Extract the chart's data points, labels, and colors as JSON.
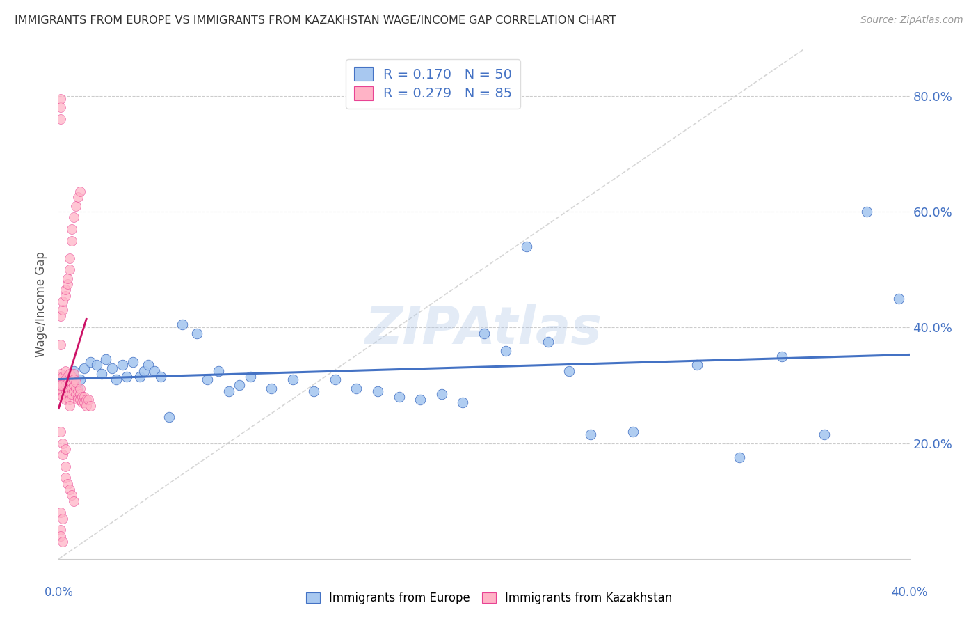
{
  "title": "IMMIGRANTS FROM EUROPE VS IMMIGRANTS FROM KAZAKHSTAN WAGE/INCOME GAP CORRELATION CHART",
  "source": "Source: ZipAtlas.com",
  "ylabel": "Wage/Income Gap",
  "legend_label1": "Immigrants from Europe",
  "legend_label2": "Immigrants from Kazakhstan",
  "R1": 0.17,
  "N1": 50,
  "R2": 0.279,
  "N2": 85,
  "color_europe": "#a8c8f0",
  "color_kazakhstan": "#ffb3c6",
  "color_europe_dark": "#4472c4",
  "color_kazakhstan_dark": "#e84393",
  "xlim": [
    0.0,
    0.4
  ],
  "ylim": [
    0.0,
    0.88
  ],
  "yticks": [
    0.2,
    0.4,
    0.6,
    0.8
  ],
  "europe_x": [
    0.005,
    0.007,
    0.009,
    0.01,
    0.012,
    0.015,
    0.018,
    0.02,
    0.022,
    0.025,
    0.027,
    0.03,
    0.032,
    0.035,
    0.038,
    0.04,
    0.042,
    0.045,
    0.048,
    0.052,
    0.058,
    0.065,
    0.07,
    0.075,
    0.08,
    0.085,
    0.09,
    0.1,
    0.11,
    0.12,
    0.13,
    0.14,
    0.15,
    0.16,
    0.17,
    0.18,
    0.19,
    0.2,
    0.21,
    0.22,
    0.23,
    0.24,
    0.25,
    0.27,
    0.3,
    0.32,
    0.34,
    0.36,
    0.38,
    0.395
  ],
  "europe_y": [
    0.315,
    0.325,
    0.295,
    0.31,
    0.33,
    0.34,
    0.335,
    0.32,
    0.345,
    0.33,
    0.31,
    0.335,
    0.315,
    0.34,
    0.315,
    0.325,
    0.335,
    0.325,
    0.315,
    0.245,
    0.405,
    0.39,
    0.31,
    0.325,
    0.29,
    0.3,
    0.315,
    0.295,
    0.31,
    0.29,
    0.31,
    0.295,
    0.29,
    0.28,
    0.275,
    0.285,
    0.27,
    0.39,
    0.36,
    0.54,
    0.375,
    0.325,
    0.215,
    0.22,
    0.335,
    0.175,
    0.35,
    0.215,
    0.6,
    0.45
  ],
  "kazakhstan_x": [
    0.001,
    0.001,
    0.001,
    0.001,
    0.001,
    0.002,
    0.002,
    0.002,
    0.002,
    0.002,
    0.003,
    0.003,
    0.003,
    0.003,
    0.003,
    0.003,
    0.004,
    0.004,
    0.004,
    0.004,
    0.005,
    0.005,
    0.005,
    0.005,
    0.005,
    0.006,
    0.006,
    0.006,
    0.006,
    0.007,
    0.007,
    0.007,
    0.007,
    0.008,
    0.008,
    0.008,
    0.009,
    0.009,
    0.009,
    0.01,
    0.01,
    0.01,
    0.011,
    0.011,
    0.012,
    0.012,
    0.013,
    0.013,
    0.014,
    0.015,
    0.001,
    0.001,
    0.002,
    0.002,
    0.003,
    0.003,
    0.004,
    0.004,
    0.005,
    0.005,
    0.006,
    0.006,
    0.007,
    0.008,
    0.009,
    0.01,
    0.001,
    0.001,
    0.002,
    0.003,
    0.003,
    0.004,
    0.005,
    0.006,
    0.007,
    0.001,
    0.002,
    0.003,
    0.001,
    0.002,
    0.001,
    0.001,
    0.002,
    0.001,
    0.001
  ],
  "kazakhstan_y": [
    0.3,
    0.315,
    0.32,
    0.295,
    0.285,
    0.305,
    0.29,
    0.3,
    0.315,
    0.28,
    0.3,
    0.31,
    0.325,
    0.3,
    0.285,
    0.275,
    0.295,
    0.305,
    0.315,
    0.29,
    0.32,
    0.3,
    0.285,
    0.275,
    0.265,
    0.305,
    0.315,
    0.295,
    0.285,
    0.29,
    0.3,
    0.32,
    0.31,
    0.295,
    0.305,
    0.285,
    0.28,
    0.29,
    0.275,
    0.285,
    0.295,
    0.275,
    0.28,
    0.27,
    0.28,
    0.27,
    0.275,
    0.265,
    0.275,
    0.265,
    0.37,
    0.42,
    0.43,
    0.445,
    0.455,
    0.465,
    0.475,
    0.485,
    0.5,
    0.52,
    0.55,
    0.57,
    0.59,
    0.61,
    0.625,
    0.635,
    0.76,
    0.78,
    0.18,
    0.16,
    0.14,
    0.13,
    0.12,
    0.11,
    0.1,
    0.22,
    0.2,
    0.19,
    0.08,
    0.07,
    0.05,
    0.04,
    0.03,
    0.795,
    0.3
  ]
}
